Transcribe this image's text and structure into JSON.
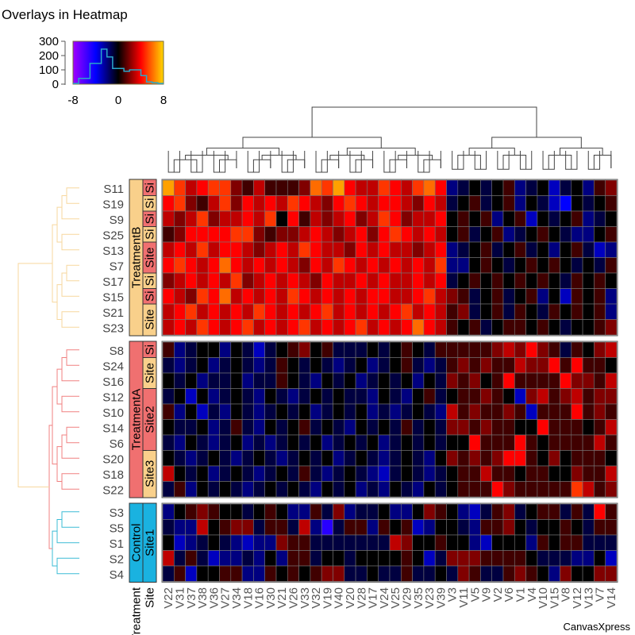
{
  "chart_data": {
    "type": "heatmap",
    "title": "Overlays in Heatmap",
    "watermark": "CanvasXpress",
    "color_scale": {
      "min": -8,
      "max": 8,
      "ticks": [
        "-8",
        "0",
        "8"
      ],
      "colors": [
        "#a000ff",
        "#0000ff",
        "#000000",
        "#ff0000",
        "#ffd700"
      ],
      "histogram": {
        "y_ticks": [
          "0",
          "100",
          "200",
          "300"
        ],
        "ylim": [
          0,
          300
        ],
        "bins_x": [
          -8,
          -7,
          -6,
          -5,
          -4,
          -3,
          -2,
          -1,
          0,
          1,
          2,
          3,
          4,
          5,
          6,
          7,
          8
        ],
        "counts": [
          5,
          40,
          40,
          145,
          145,
          245,
          190,
          110,
          110,
          90,
          100,
          100,
          60,
          15,
          10,
          5
        ]
      }
    },
    "columns": [
      "V22",
      "V31",
      "V37",
      "V38",
      "V36",
      "V27",
      "V34",
      "V18",
      "V16",
      "V30",
      "V21",
      "V26",
      "V33",
      "V32",
      "V19",
      "V40",
      "V20",
      "V28",
      "V17",
      "V24",
      "V25",
      "V29",
      "V35",
      "V23",
      "V39",
      "V3",
      "V11",
      "V5",
      "V9",
      "V2",
      "V6",
      "V1",
      "V4",
      "V10",
      "V15",
      "V8",
      "V12",
      "V13",
      "V7",
      "V14"
    ],
    "column_clusters": [
      25,
      15
    ],
    "row_groups": [
      {
        "treatment": "TreatmentB",
        "color": "#f9d08b",
        "rows": [
          "S11",
          "S19",
          "S9",
          "S25",
          "S13",
          "S7",
          "S17",
          "S15",
          "S21",
          "S23"
        ],
        "site_segments": [
          {
            "label": "Si",
            "color": "#f07070",
            "span": 1
          },
          {
            "label": "Si",
            "color": "#f9d08b",
            "span": 1
          },
          {
            "label": "Si",
            "color": "#f07070",
            "span": 1
          },
          {
            "label": "Si",
            "color": "#f9d08b",
            "span": 1
          },
          {
            "label": "Site",
            "color": "#f07070",
            "span": 2
          },
          {
            "label": "Si",
            "color": "#f9d08b",
            "span": 1
          },
          {
            "label": "Si",
            "color": "#f07070",
            "span": 1
          },
          {
            "label": "Site",
            "color": "#f9d08b",
            "span": 2
          }
        ]
      },
      {
        "treatment": "TreatmentA",
        "color": "#f07070",
        "rows": [
          "S8",
          "S24",
          "S16",
          "S12",
          "S10",
          "S14",
          "S6",
          "S20",
          "S18",
          "S22"
        ],
        "site_segments": [
          {
            "label": "Si",
            "color": "#f07070",
            "span": 1
          },
          {
            "label": "Site",
            "color": "#f9d08b",
            "span": 2
          },
          {
            "label": "Site2",
            "color": "#f07070",
            "span": 4
          },
          {
            "label": "Site3",
            "color": "#f9d08b",
            "span": 3
          }
        ]
      },
      {
        "treatment": "Control",
        "color": "#1ab2e0",
        "rows": [
          "S3",
          "S5",
          "S1",
          "S2",
          "S4"
        ],
        "site_segments": [
          {
            "label": "Site1",
            "color": "#1ab2e0",
            "span": 5
          }
        ]
      }
    ],
    "annotation_headers": [
      "Treatment",
      "Site"
    ],
    "values": [
      [
        7,
        5,
        3,
        4,
        5,
        5,
        2,
        1,
        3,
        1,
        1,
        1,
        2,
        6,
        5,
        7,
        4,
        3,
        3,
        5,
        4,
        3,
        5,
        6,
        4,
        -2,
        -1,
        0,
        -1,
        0,
        1,
        -2,
        -1,
        0,
        -3,
        -1,
        0,
        -2,
        1,
        2
      ],
      [
        4,
        5,
        2,
        1,
        3,
        5,
        2,
        4,
        3,
        4,
        3,
        5,
        4,
        3,
        2,
        4,
        5,
        4,
        3,
        4,
        4,
        3,
        2,
        4,
        3,
        -1,
        0,
        1,
        -1,
        0,
        1,
        -2,
        0,
        -1,
        -3,
        -4,
        0,
        -1,
        0,
        1
      ],
      [
        3,
        2,
        3,
        5,
        2,
        3,
        3,
        4,
        3,
        5,
        0,
        4,
        1,
        3,
        2,
        3,
        4,
        2,
        3,
        5,
        4,
        2,
        3,
        3,
        4,
        0,
        1,
        0,
        1,
        -2,
        0,
        1,
        -3,
        0,
        -1,
        0,
        1,
        -2,
        -1,
        0
      ],
      [
        1,
        2,
        4,
        4,
        4,
        4,
        5,
        5,
        2,
        1,
        2,
        2,
        3,
        4,
        3,
        2,
        3,
        4,
        2,
        4,
        5,
        4,
        3,
        4,
        3,
        0,
        1,
        -1,
        0,
        1,
        -2,
        -1,
        0,
        1,
        0,
        -1,
        -2,
        -2,
        0,
        1
      ],
      [
        3,
        4,
        3,
        5,
        3,
        4,
        4,
        3,
        2,
        3,
        4,
        3,
        5,
        4,
        3,
        3,
        2,
        4,
        3,
        4,
        3,
        3,
        2,
        3,
        4,
        -2,
        -1,
        0,
        1,
        -1,
        0,
        1,
        -1,
        0,
        -2,
        0,
        1,
        -1,
        -3,
        -2
      ],
      [
        4,
        5,
        4,
        3,
        4,
        6,
        4,
        3,
        4,
        3,
        4,
        3,
        2,
        4,
        3,
        5,
        4,
        3,
        4,
        3,
        4,
        3,
        4,
        3,
        5,
        -2,
        -2,
        0,
        1,
        0,
        -1,
        0,
        1,
        0,
        1,
        0,
        -1,
        0,
        -1,
        1
      ],
      [
        2,
        3,
        4,
        3,
        4,
        3,
        5,
        2,
        3,
        4,
        3,
        4,
        3,
        2,
        4,
        3,
        3,
        4,
        3,
        4,
        3,
        3,
        4,
        3,
        4,
        -1,
        0,
        1,
        0,
        1,
        0,
        1,
        0,
        1,
        0,
        -1,
        1,
        0,
        1,
        0
      ],
      [
        4,
        3,
        2,
        5,
        4,
        6,
        3,
        4,
        3,
        4,
        3,
        5,
        4,
        3,
        4,
        3,
        4,
        3,
        4,
        4,
        3,
        3,
        4,
        5,
        3,
        2,
        1,
        -1,
        0,
        1,
        -1,
        0,
        1,
        -2,
        0,
        -3,
        1,
        0,
        1,
        -2
      ],
      [
        3,
        4,
        5,
        3,
        4,
        3,
        4,
        3,
        5,
        4,
        3,
        4,
        3,
        4,
        5,
        3,
        4,
        3,
        4,
        3,
        4,
        5,
        3,
        4,
        3,
        1,
        2,
        -1,
        0,
        1,
        -1,
        1,
        0,
        -1,
        1,
        0,
        1,
        0,
        1,
        -2
      ],
      [
        3,
        4,
        3,
        5,
        4,
        3,
        4,
        5,
        3,
        4,
        3,
        4,
        5,
        3,
        4,
        3,
        4,
        5,
        3,
        4,
        3,
        4,
        6,
        4,
        3,
        1,
        0,
        1,
        -1,
        0,
        1,
        1,
        0,
        1,
        0,
        -1,
        0,
        0,
        1,
        2
      ],
      [
        1,
        -2,
        -1,
        0,
        0,
        -2,
        0,
        -1,
        -3,
        -1,
        0,
        1,
        2,
        0,
        1,
        -1,
        -1,
        -1,
        0,
        -1,
        0,
        1,
        0,
        -1,
        1,
        1,
        1,
        1,
        1,
        2,
        3,
        2,
        4,
        2,
        1,
        -1,
        1,
        0,
        2,
        3
      ],
      [
        -1,
        -2,
        -1,
        0,
        -2,
        -1,
        0,
        -1,
        -2,
        -1,
        1,
        0,
        -1,
        0,
        -1,
        -2,
        -1,
        0,
        -2,
        -1,
        0,
        1,
        -1,
        -2,
        -1,
        1,
        2,
        1,
        2,
        1,
        1,
        3,
        2,
        2,
        4,
        1,
        4,
        1,
        1,
        0
      ],
      [
        0,
        -1,
        0,
        -2,
        -1,
        -1,
        0,
        -2,
        -1,
        -1,
        1,
        0,
        -1,
        -2,
        0,
        -1,
        0,
        -2,
        -1,
        0,
        -1,
        0,
        -2,
        0,
        -1,
        2,
        1,
        2,
        0,
        1,
        4,
        1,
        1,
        1,
        1,
        4,
        2,
        2,
        1,
        3
      ],
      [
        -1,
        0,
        -3,
        0,
        -2,
        -1,
        0,
        -1,
        -2,
        0,
        -1,
        -2,
        -1,
        0,
        -1,
        0,
        -1,
        -1,
        -2,
        0,
        -1,
        -2,
        0,
        1,
        -1,
        0,
        1,
        1,
        2,
        1,
        0,
        -3,
        2,
        3,
        1,
        2,
        3,
        1,
        2,
        2
      ],
      [
        1,
        -2,
        0,
        -3,
        -1,
        -2,
        0,
        -1,
        -2,
        -1,
        0,
        -1,
        0,
        -2,
        -1,
        0,
        -1,
        0,
        -2,
        -1,
        -2,
        -1,
        0,
        -1,
        -2,
        3,
        1,
        2,
        1,
        1,
        2,
        1,
        -3,
        1,
        1,
        1,
        4,
        1,
        2,
        1
      ],
      [
        0,
        -1,
        -1,
        0,
        -2,
        -1,
        1,
        -1,
        -2,
        0,
        -1,
        0,
        1,
        -1,
        0,
        -1,
        -2,
        0,
        -1,
        0,
        -1,
        1,
        -1,
        0,
        -1,
        2,
        2,
        1,
        2,
        1,
        1,
        0,
        0,
        4,
        1,
        1,
        1,
        0,
        1,
        3
      ],
      [
        -1,
        -2,
        0,
        -1,
        -2,
        -1,
        0,
        -2,
        -1,
        -2,
        -1,
        0,
        -1,
        0,
        -2,
        -1,
        0,
        -1,
        0,
        -2,
        -1,
        0,
        -1,
        0,
        -1,
        0,
        0,
        4,
        1,
        1,
        1,
        4,
        1,
        0,
        1,
        1,
        1,
        1,
        3,
        1
      ],
      [
        0,
        -1,
        -2,
        -1,
        0,
        -1,
        -2,
        -1,
        0,
        -1,
        -2,
        -1,
        0,
        -1,
        0,
        -2,
        -1,
        0,
        -1,
        -2,
        -1,
        0,
        -1,
        -2,
        0,
        2,
        1,
        2,
        1,
        2,
        4,
        4,
        1,
        0,
        2,
        0,
        1,
        1,
        1,
        0
      ],
      [
        3,
        0,
        -1,
        0,
        -2,
        -1,
        0,
        -1,
        -2,
        -1,
        0,
        -1,
        1,
        -1,
        -2,
        -1,
        0,
        -1,
        -2,
        -3,
        -1,
        0,
        -1,
        -2,
        -1,
        0,
        1,
        1,
        3,
        1,
        1,
        0,
        1,
        1,
        0,
        0,
        2,
        1,
        1,
        3
      ],
      [
        -1,
        1,
        -2,
        0,
        -1,
        0,
        -1,
        -2,
        -1,
        0,
        -1,
        0,
        -1,
        -2,
        0,
        -1,
        0,
        -2,
        -1,
        -2,
        0,
        -1,
        -2,
        0,
        -1,
        0,
        1,
        1,
        1,
        4,
        2,
        1,
        1,
        1,
        1,
        1,
        5,
        3,
        1,
        2
      ],
      [
        -2,
        0,
        1,
        2,
        1,
        0,
        0,
        -1,
        0,
        1,
        0,
        -2,
        -2,
        1,
        -1,
        2,
        -2,
        -1,
        -1,
        0,
        -2,
        -2,
        0,
        2,
        1,
        0,
        -2,
        -3,
        -1,
        1,
        2,
        -1,
        0,
        1,
        1,
        -1,
        1,
        -1,
        4,
        1
      ],
      [
        -1,
        -2,
        -2,
        3,
        0,
        1,
        2,
        2,
        -1,
        1,
        1,
        -1,
        3,
        -2,
        -5,
        -1,
        1,
        1,
        -2,
        1,
        0,
        1,
        -3,
        -2,
        0,
        0,
        -1,
        -2,
        1,
        1,
        2,
        0,
        -1,
        0,
        0,
        1,
        0,
        -1,
        1,
        1
      ],
      [
        0,
        -3,
        -2,
        -1,
        0,
        -1,
        -2,
        -3,
        -2,
        -2,
        2,
        1,
        1,
        -1,
        -1,
        -1,
        -1,
        -1,
        -1,
        -1,
        3,
        2,
        0,
        0,
        1,
        0,
        0,
        -2,
        -3,
        0,
        0,
        0,
        -2,
        1,
        0,
        1,
        1,
        -1,
        -1,
        -1
      ],
      [
        3,
        -1,
        1,
        -1,
        -3,
        -2,
        -2,
        -1,
        -2,
        0,
        -2,
        1,
        1,
        -1,
        0,
        0,
        -1,
        0,
        0,
        0,
        0,
        1,
        0,
        -3,
        -1,
        2,
        2,
        2,
        1,
        1,
        1,
        1,
        0,
        -1,
        -1,
        -1,
        -2,
        -2,
        0,
        -3
      ],
      [
        -1,
        1,
        -3,
        0,
        0,
        1,
        1,
        -2,
        -2,
        1,
        0,
        1,
        0,
        1,
        2,
        2,
        -1,
        -1,
        0,
        -1,
        -1,
        1,
        -1,
        -1,
        0,
        -1,
        2,
        1,
        -1,
        -1,
        1,
        2,
        1,
        0,
        -2,
        2,
        0,
        0,
        2,
        2
      ]
    ]
  }
}
